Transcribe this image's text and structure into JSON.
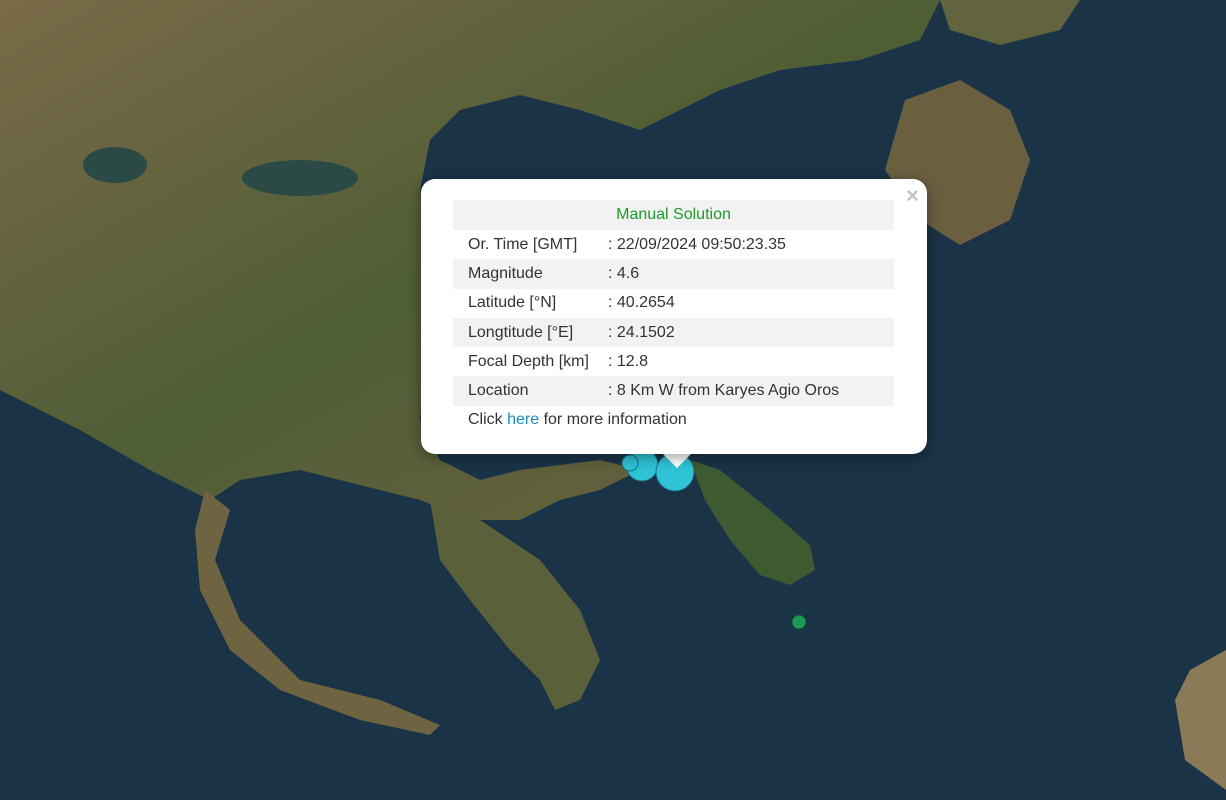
{
  "popup": {
    "title": "Manual Solution",
    "close_label": "×",
    "rows": [
      {
        "label": "Or. Time [GMT]",
        "value": ": 22/09/2024 09:50:23.35"
      },
      {
        "label": "Magnitude",
        "value": ": 4.6"
      },
      {
        "label": "Latitude [°N]",
        "value": ": 40.2654"
      },
      {
        "label": "Longtitude [°E]",
        "value": ": 24.1502"
      },
      {
        "label": "Focal Depth [km]",
        "value": ": 12.8"
      },
      {
        "label": "Location",
        "value": ": 8 Km W from Karyes Agio Oros"
      }
    ],
    "more_prefix": "Click ",
    "more_link": "here",
    "more_suffix": " for more information"
  },
  "markers": {
    "recent_color": "#2fc3d6",
    "older_color": "#1e9a55"
  }
}
